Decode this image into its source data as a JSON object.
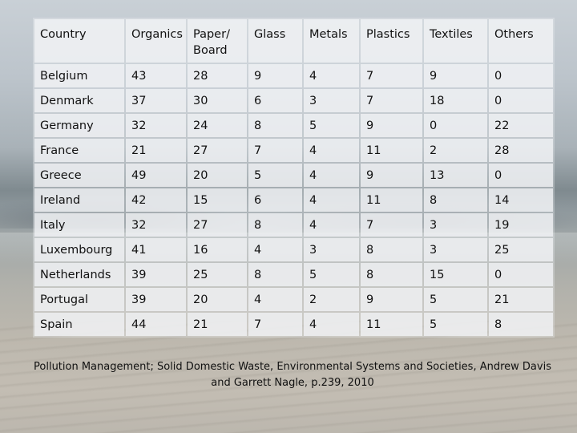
{
  "table": {
    "headers": [
      "Country",
      "Organics",
      "Paper/ Board",
      "Glass",
      "Metals",
      "Plastics",
      "Textiles",
      "Others"
    ],
    "rows": [
      [
        "Belgium",
        "43",
        "28",
        "9",
        "4",
        "7",
        "9",
        "0"
      ],
      [
        "Denmark",
        "37",
        "30",
        "6",
        "3",
        "7",
        "18",
        "0"
      ],
      [
        "Germany",
        "32",
        "24",
        "8",
        "5",
        "9",
        "0",
        "22"
      ],
      [
        "France",
        "21",
        "27",
        "7",
        "4",
        "11",
        "2",
        "28"
      ],
      [
        "Greece",
        "49",
        "20",
        "5",
        "4",
        "9",
        "13",
        "0"
      ],
      [
        "Ireland",
        "42",
        "15",
        "6",
        "4",
        "11",
        "8",
        "14"
      ],
      [
        "Italy",
        "32",
        "27",
        "8",
        "4",
        "7",
        "3",
        "19"
      ],
      [
        "Luxembourg",
        "41",
        "16",
        "4",
        "3",
        "8",
        "3",
        "25"
      ],
      [
        "Netherlands",
        "39",
        "25",
        "8",
        "5",
        "8",
        "15",
        "0"
      ],
      [
        "Portugal",
        "39",
        "20",
        "4",
        "2",
        "9",
        "5",
        "21"
      ],
      [
        "Spain",
        "44",
        "21",
        "7",
        "4",
        "11",
        "5",
        "8"
      ]
    ]
  },
  "caption": "Pollution Management; Solid Domestic Waste, Environmental Systems and Societies, Andrew Davis and Garrett Nagle, p.239, 2010"
}
